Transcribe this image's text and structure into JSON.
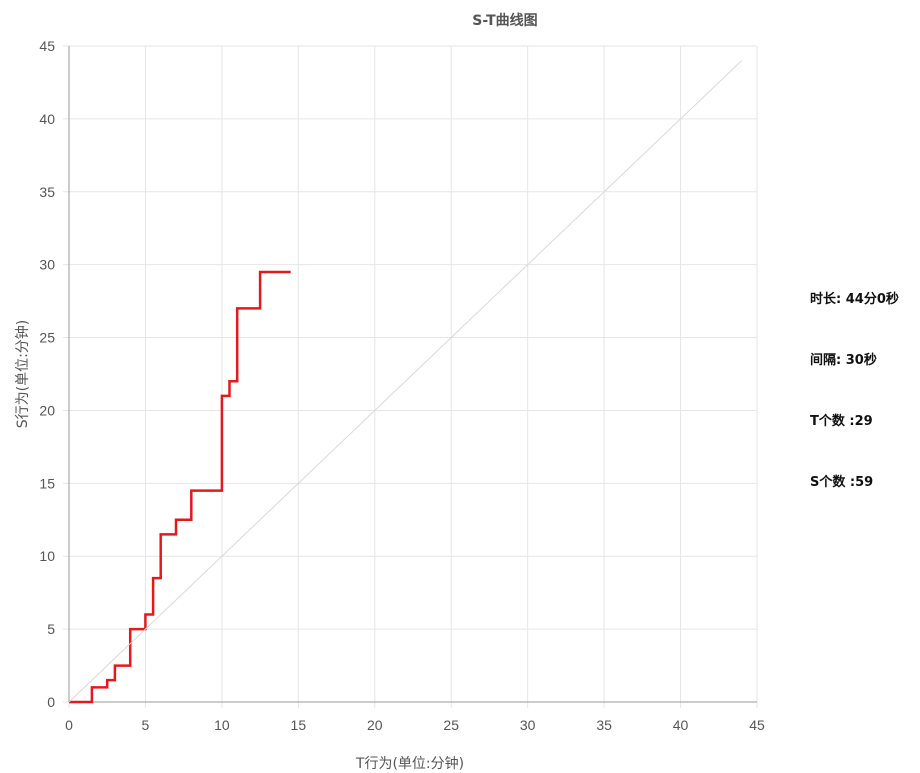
{
  "chart_data": {
    "type": "line",
    "title": "S-T曲线图",
    "xlabel": "T行为(单位:分钟)",
    "ylabel": "S行为(单位:分钟)",
    "xlim": [
      0,
      45
    ],
    "ylim": [
      0,
      45
    ],
    "xticks": [
      "0",
      "5",
      "10",
      "15",
      "20",
      "25",
      "30",
      "35",
      "40",
      "45"
    ],
    "yticks": [
      "0",
      "5",
      "10",
      "15",
      "20",
      "25",
      "30",
      "35",
      "40",
      "45"
    ],
    "grid": true,
    "legend": "none",
    "series": [
      {
        "color": "#e31a1c",
        "step": true,
        "points": [
          [
            0,
            0
          ],
          [
            1.5,
            0
          ],
          [
            1.5,
            1
          ],
          [
            2.5,
            1
          ],
          [
            2.5,
            1.5
          ],
          [
            3,
            1.5
          ],
          [
            3,
            2.5
          ],
          [
            4,
            2.5
          ],
          [
            4,
            5
          ],
          [
            5,
            5
          ],
          [
            5,
            6
          ],
          [
            5.5,
            6
          ],
          [
            5.5,
            8.5
          ],
          [
            6,
            8.5
          ],
          [
            6,
            11.5
          ],
          [
            7,
            11.5
          ],
          [
            7,
            12.5
          ],
          [
            8,
            12.5
          ],
          [
            8,
            14.5
          ],
          [
            10,
            14.5
          ],
          [
            10,
            21
          ],
          [
            10.5,
            21
          ],
          [
            10.5,
            22
          ],
          [
            11,
            22
          ],
          [
            11,
            27
          ],
          [
            12.5,
            27
          ],
          [
            12.5,
            29.5
          ],
          [
            14.5,
            29.5
          ]
        ]
      },
      {
        "color": "#d9d9d9",
        "points": [
          [
            0,
            0
          ],
          [
            44,
            44
          ]
        ]
      }
    ]
  },
  "stats": {
    "duration": "时长: 44分0秒",
    "interval": "间隔: 30秒",
    "t_count": "T个数 :29",
    "s_count": "S个数 :59"
  }
}
